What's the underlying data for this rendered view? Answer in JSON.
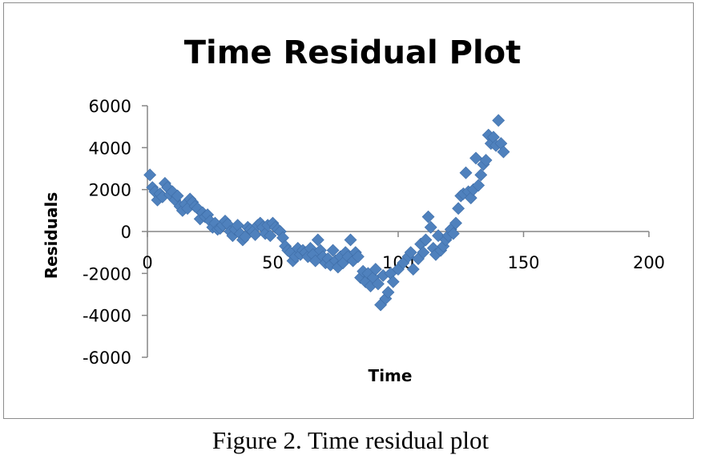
{
  "chart_data": {
    "type": "scatter",
    "title": "Time Residual Plot",
    "xlabel": "Time",
    "ylabel": "Residuals",
    "xlim": [
      0,
      200
    ],
    "ylim": [
      -6000,
      6000
    ],
    "xticks": [
      0,
      50,
      100,
      150,
      200
    ],
    "yticks": [
      6000,
      4000,
      2000,
      0,
      -2000,
      -4000,
      -6000
    ],
    "xtick_labels": [
      "0",
      "50",
      "100",
      "150",
      "200"
    ],
    "ytick_labels": [
      "6000",
      "4000",
      "2000",
      "0",
      "-2000",
      "-4000",
      "-6000"
    ],
    "grid": false,
    "legend": false,
    "marker_color": "#4F81BD",
    "series": [
      {
        "name": "Residuals",
        "points": [
          [
            1,
            2700
          ],
          [
            2,
            2100
          ],
          [
            3,
            1900
          ],
          [
            4,
            1500
          ],
          [
            5,
            1800
          ],
          [
            6,
            1650
          ],
          [
            7,
            2300
          ],
          [
            8,
            2100
          ],
          [
            9,
            1750
          ],
          [
            10,
            1900
          ],
          [
            11,
            1500
          ],
          [
            12,
            1700
          ],
          [
            13,
            1200
          ],
          [
            14,
            1000
          ],
          [
            15,
            1300
          ],
          [
            16,
            1100
          ],
          [
            17,
            1550
          ],
          [
            18,
            1400
          ],
          [
            19,
            1200
          ],
          [
            20,
            1100
          ],
          [
            21,
            600
          ],
          [
            22,
            900
          ],
          [
            23,
            700
          ],
          [
            24,
            800
          ],
          [
            25,
            500
          ],
          [
            26,
            200
          ],
          [
            27,
            400
          ],
          [
            28,
            100
          ],
          [
            29,
            150
          ],
          [
            30,
            300
          ],
          [
            31,
            500
          ],
          [
            32,
            350
          ],
          [
            33,
            0
          ],
          [
            34,
            -200
          ],
          [
            35,
            100
          ],
          [
            36,
            300
          ],
          [
            37,
            -100
          ],
          [
            38,
            -400
          ],
          [
            39,
            -250
          ],
          [
            40,
            200
          ],
          [
            41,
            100
          ],
          [
            42,
            0
          ],
          [
            43,
            -150
          ],
          [
            44,
            300
          ],
          [
            45,
            400
          ],
          [
            46,
            200
          ],
          [
            47,
            -100
          ],
          [
            48,
            300
          ],
          [
            49,
            -200
          ],
          [
            50,
            400
          ],
          [
            51,
            200
          ],
          [
            52,
            100
          ],
          [
            53,
            0
          ],
          [
            54,
            -300
          ],
          [
            55,
            -700
          ],
          [
            56,
            -900
          ],
          [
            57,
            -1000
          ],
          [
            58,
            -1400
          ],
          [
            59,
            -1200
          ],
          [
            60,
            -800
          ],
          [
            61,
            -1100
          ],
          [
            62,
            -900
          ],
          [
            63,
            -1000
          ],
          [
            64,
            -1200
          ],
          [
            65,
            -800
          ],
          [
            66,
            -1100
          ],
          [
            67,
            -1400
          ],
          [
            68,
            -400
          ],
          [
            69,
            -900
          ],
          [
            70,
            -1200
          ],
          [
            71,
            -1500
          ],
          [
            72,
            -1300
          ],
          [
            73,
            -1600
          ],
          [
            74,
            -900
          ],
          [
            75,
            -1400
          ],
          [
            76,
            -1700
          ],
          [
            77,
            -1200
          ],
          [
            78,
            -1500
          ],
          [
            79,
            -1000
          ],
          [
            80,
            -1200
          ],
          [
            81,
            -400
          ],
          [
            82,
            -1400
          ],
          [
            83,
            -1000
          ],
          [
            84,
            -1200
          ],
          [
            85,
            -2200
          ],
          [
            86,
            -1900
          ],
          [
            87,
            -2400
          ],
          [
            88,
            -2000
          ],
          [
            89,
            -2600
          ],
          [
            90,
            -2200
          ],
          [
            91,
            -1800
          ],
          [
            92,
            -2500
          ],
          [
            93,
            -3500
          ],
          [
            94,
            -2100
          ],
          [
            95,
            -3200
          ],
          [
            96,
            -2900
          ],
          [
            97,
            -2000
          ],
          [
            98,
            -2400
          ],
          [
            100,
            -1800
          ],
          [
            102,
            -1500
          ],
          [
            104,
            -1200
          ],
          [
            105,
            -1000
          ],
          [
            106,
            -1800
          ],
          [
            108,
            -1300
          ],
          [
            109,
            -600
          ],
          [
            110,
            -1000
          ],
          [
            111,
            -400
          ],
          [
            112,
            700
          ],
          [
            113,
            200
          ],
          [
            114,
            -800
          ],
          [
            115,
            -1100
          ],
          [
            116,
            -200
          ],
          [
            117,
            -900
          ],
          [
            118,
            -700
          ],
          [
            119,
            -400
          ],
          [
            120,
            -200
          ],
          [
            121,
            100
          ],
          [
            122,
            -100
          ],
          [
            123,
            400
          ],
          [
            124,
            1100
          ],
          [
            125,
            1700
          ],
          [
            126,
            1800
          ],
          [
            127,
            2800
          ],
          [
            128,
            1900
          ],
          [
            129,
            1600
          ],
          [
            130,
            2000
          ],
          [
            131,
            3500
          ],
          [
            132,
            2200
          ],
          [
            133,
            2700
          ],
          [
            134,
            3200
          ],
          [
            135,
            3400
          ],
          [
            136,
            4600
          ],
          [
            137,
            4200
          ],
          [
            138,
            4500
          ],
          [
            139,
            4100
          ],
          [
            140,
            5300
          ],
          [
            141,
            4200
          ],
          [
            142,
            3800
          ]
        ]
      }
    ]
  },
  "caption": "Figure 2. Time residual plot"
}
